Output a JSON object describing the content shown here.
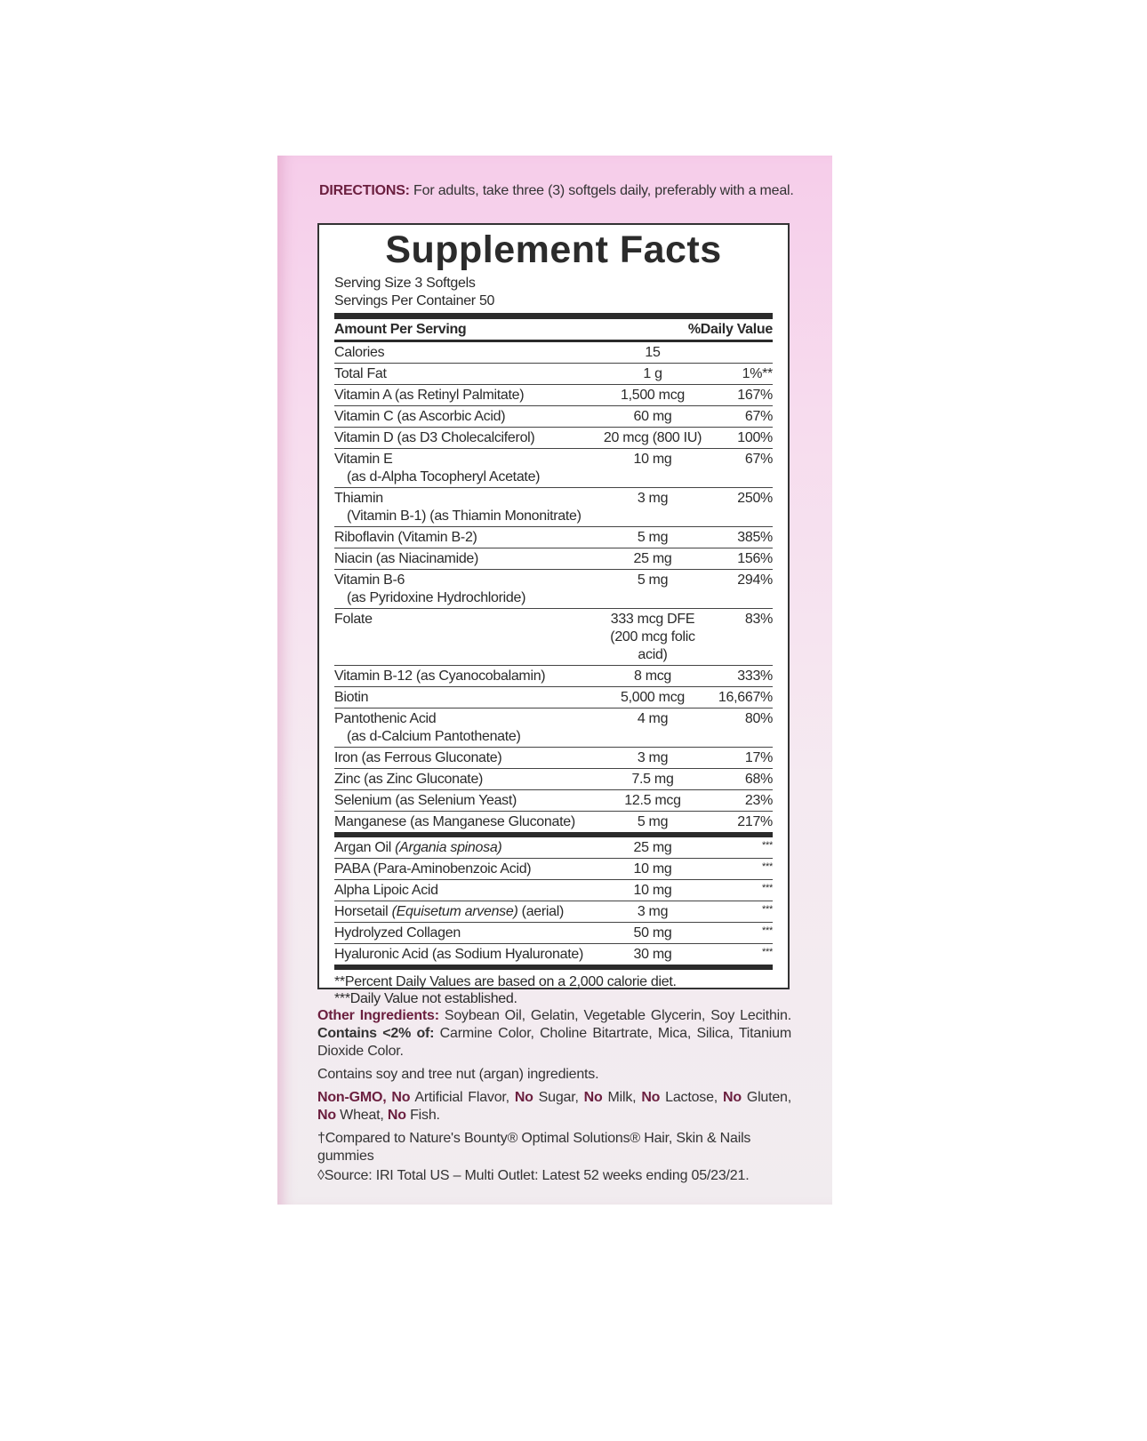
{
  "directions": {
    "label": "DIRECTIONS:",
    "text": " For adults, take three (3) softgels daily, preferably with a meal."
  },
  "facts": {
    "title": "Supplement Facts",
    "serving_size": "Serving Size 3 Softgels",
    "servings_per_container": "Servings Per Container 50",
    "header_amount": "Amount Per Serving",
    "header_dv": "%Daily Value",
    "rows": [
      {
        "name": "Calories",
        "amount": "15",
        "dv": ""
      },
      {
        "name": "Total Fat",
        "amount": "1 g",
        "dv": "1%**"
      },
      {
        "name": "Vitamin A (as Retinyl Palmitate)",
        "amount": "1,500 mcg",
        "dv": "167%"
      },
      {
        "name": "Vitamin C (as Ascorbic Acid)",
        "amount": "60 mg",
        "dv": "67%"
      },
      {
        "name": "Vitamin D (as D3 Cholecalciferol)",
        "amount": "20 mcg (800 IU)",
        "dv": "100%"
      },
      {
        "name": "Vitamin E",
        "sub": "(as d-Alpha Tocopheryl Acetate)",
        "amount": "10 mg",
        "dv": "67%"
      },
      {
        "name": "Thiamin",
        "sub": "(Vitamin B-1) (as Thiamin Mononitrate)",
        "amount": "3 mg",
        "dv": "250%"
      },
      {
        "name": "Riboflavin (Vitamin B-2)",
        "amount": "5 mg",
        "dv": "385%"
      },
      {
        "name": "Niacin (as Niacinamide)",
        "amount": "25 mg",
        "dv": "156%"
      },
      {
        "name": "Vitamin B-6",
        "sub": "(as Pyridoxine Hydrochloride)",
        "amount": "5 mg",
        "dv": "294%"
      },
      {
        "name": "Folate",
        "amount": "333 mcg DFE",
        "amount2": "(200 mcg folic acid)",
        "dv": "83%"
      },
      {
        "name": "Vitamin B-12 (as Cyanocobalamin)",
        "amount": "8 mcg",
        "dv": "333%"
      },
      {
        "name": "Biotin",
        "amount": "5,000 mcg",
        "dv": "16,667%"
      },
      {
        "name": "Pantothenic Acid",
        "sub": "(as d-Calcium Pantothenate)",
        "amount": "4 mg",
        "dv": "80%"
      },
      {
        "name": "Iron (as Ferrous Gluconate)",
        "amount": "3 mg",
        "dv": "17%"
      },
      {
        "name": "Zinc (as Zinc Gluconate)",
        "amount": "7.5 mg",
        "dv": "68%"
      },
      {
        "name": "Selenium (as Selenium Yeast)",
        "amount": "12.5 mcg",
        "dv": "23%"
      },
      {
        "name": "Manganese (as Manganese Gluconate)",
        "amount": "5 mg",
        "dv": "217%",
        "thick": true
      },
      {
        "name": "Argan Oil ",
        "italic": "(Argania spinosa)",
        "amount": "25 mg",
        "dv": "***"
      },
      {
        "name": "PABA (Para-Aminobenzoic Acid)",
        "amount": "10 mg",
        "dv": "***"
      },
      {
        "name": "Alpha Lipoic Acid",
        "amount": "10 mg",
        "dv": "***"
      },
      {
        "name": "Horsetail ",
        "italic": "(Equisetum arvense)",
        "suffix": " (aerial)",
        "amount": "3 mg",
        "dv": "***"
      },
      {
        "name": "Hydrolyzed Collagen",
        "amount": "50 mg",
        "dv": "***"
      },
      {
        "name": "Hyaluronic Acid (as Sodium Hyaluronate)",
        "amount": "30 mg",
        "dv": "***",
        "thick": true
      }
    ],
    "footnote1": "**Percent Daily Values are based on a 2,000 calorie diet.",
    "footnote2": "***Daily Value not established."
  },
  "other": {
    "label": "Other Ingredients:",
    "text1": " Soybean Oil, Gelatin, Vegetable Glycerin, Soy Lecithin. ",
    "contains_label": "Contains <2% of:",
    "text2": " Carmine Color, Choline Bitartrate, Mica, Silica, Titanium Dioxide Color."
  },
  "allergens": "Contains soy and tree nut (argan) ingredients.",
  "claims": [
    {
      "b": "Non-GMO, No",
      "t": " Artificial Flavor, "
    },
    {
      "b": "No",
      "t": " Sugar, "
    },
    {
      "b": "No",
      "t": " Milk, "
    },
    {
      "b": "No",
      "t": " Lactose, "
    },
    {
      "b": "No",
      "t": " Gluten, "
    },
    {
      "b": "No",
      "t": " Wheat, "
    },
    {
      "b": "No",
      "t": " Fish."
    }
  ],
  "compared": "†Compared to Nature's Bounty® Optimal Solutions® Hair, Skin & Nails gummies",
  "source": "◊Source: IRI Total US – Multi Outlet: Latest 52 weeks ending 05/23/21.",
  "colors": {
    "accent": "#6b1f3f",
    "panel_top": "#f6cdea",
    "panel_bottom": "#f1ecef"
  }
}
